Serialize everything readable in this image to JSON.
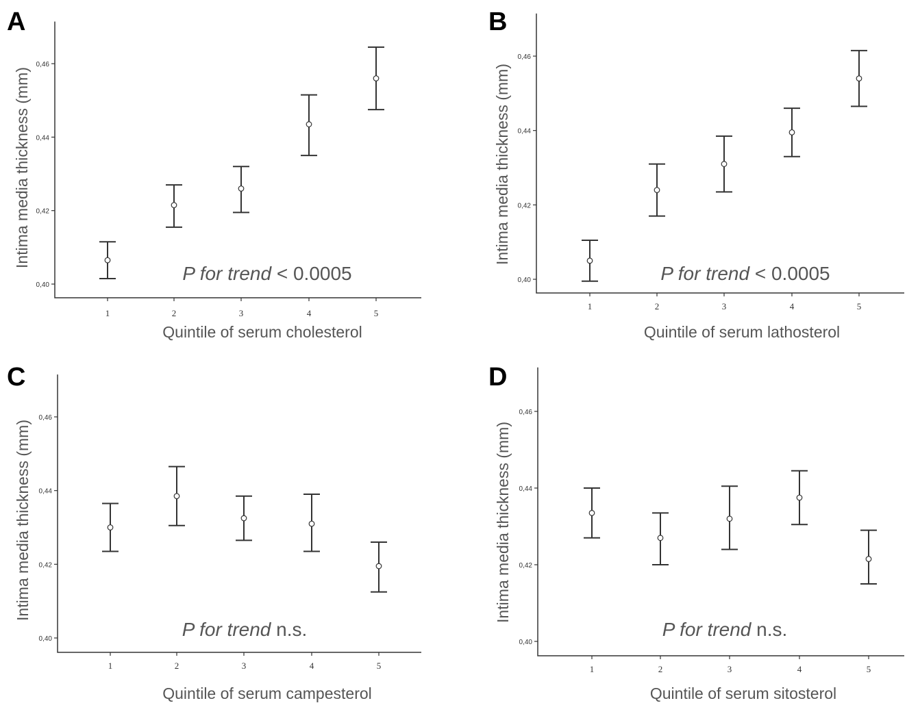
{
  "chart_data": [
    {
      "type": "errorbar",
      "panel": "A",
      "xlabel": "Quintile of serum cholesterol",
      "ylabel": "Intima media thickness (mm)",
      "categories": [
        "1",
        "2",
        "3",
        "4",
        "5"
      ],
      "yticks": [
        "0,40",
        "0,42",
        "0,44",
        "0,46"
      ],
      "ylim": [
        0.4,
        0.46
      ],
      "series": [
        {
          "values": [
            0.4065,
            0.4215,
            0.426,
            0.4435,
            0.456
          ],
          "lower": [
            0.4015,
            0.4155,
            0.4195,
            0.435,
            0.4475
          ],
          "upper": [
            0.4115,
            0.427,
            0.432,
            0.4515,
            0.4645
          ]
        }
      ],
      "annotation": {
        "italic": "P for trend",
        "normal": " < 0.0005"
      }
    },
    {
      "type": "errorbar",
      "panel": "B",
      "xlabel": "Quintile of serum lathosterol",
      "ylabel": "Intima media thickness (mm)",
      "categories": [
        "1",
        "2",
        "3",
        "4",
        "5"
      ],
      "yticks": [
        "0,40",
        "0,42",
        "0,44",
        "0,46"
      ],
      "ylim": [
        0.4,
        0.46
      ],
      "series": [
        {
          "values": [
            0.405,
            0.424,
            0.431,
            0.4395,
            0.454
          ],
          "lower": [
            0.3995,
            0.417,
            0.4235,
            0.433,
            0.4465
          ],
          "upper": [
            0.4105,
            0.431,
            0.4385,
            0.446,
            0.4615
          ]
        }
      ],
      "annotation": {
        "italic": "P for trend",
        "normal": " < 0.0005"
      }
    },
    {
      "type": "errorbar",
      "panel": "C",
      "xlabel": "Quintile of serum campesterol",
      "ylabel": "Intima media thickness (mm)",
      "categories": [
        "1",
        "2",
        "3",
        "4",
        "5"
      ],
      "yticks": [
        "0,40",
        "0,42",
        "0,44",
        "0,46"
      ],
      "ylim": [
        0.4,
        0.46
      ],
      "series": [
        {
          "values": [
            0.43,
            0.4385,
            0.4325,
            0.431,
            0.4195
          ],
          "lower": [
            0.4235,
            0.4305,
            0.4265,
            0.4235,
            0.4125
          ],
          "upper": [
            0.4365,
            0.4465,
            0.4385,
            0.439,
            0.426
          ]
        }
      ],
      "annotation": {
        "italic": "P for trend",
        "normal": " n.s."
      }
    },
    {
      "type": "errorbar",
      "panel": "D",
      "xlabel": "Quintile of serum sitosterol",
      "ylabel": "Intima media thickness (mm)",
      "categories": [
        "1",
        "2",
        "3",
        "4",
        "5"
      ],
      "yticks": [
        "0,40",
        "0,42",
        "0,44",
        "0,46"
      ],
      "ylim": [
        0.4,
        0.46
      ],
      "series": [
        {
          "values": [
            0.4335,
            0.427,
            0.432,
            0.4375,
            0.4215
          ],
          "lower": [
            0.427,
            0.42,
            0.424,
            0.4305,
            0.415
          ],
          "upper": [
            0.44,
            0.4335,
            0.4405,
            0.4445,
            0.429
          ]
        }
      ],
      "annotation": {
        "italic": "P for trend",
        "normal": " n.s."
      }
    }
  ]
}
